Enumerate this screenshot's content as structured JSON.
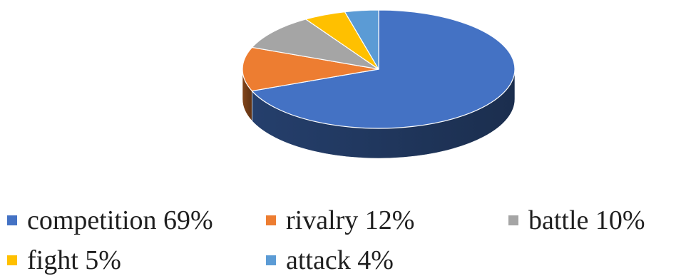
{
  "chart_data": {
    "type": "pie",
    "variant": "3d",
    "title": "",
    "categories": [
      "competition",
      "rivalry",
      "battle",
      "fight",
      "attack"
    ],
    "values": [
      69,
      12,
      10,
      5,
      4
    ],
    "unit": "%",
    "colors": [
      "#4472C4",
      "#ED7D31",
      "#A5A5A5",
      "#FFC000",
      "#5B9BD5"
    ],
    "legend": {
      "placement": "bottom",
      "entries": [
        {
          "label": "competition 69%",
          "color": "#4472C4"
        },
        {
          "label": "rivalry 12%",
          "color": "#ED7D31"
        },
        {
          "label": "battle 10%",
          "color": "#A5A5A5"
        },
        {
          "label": "fight 5%",
          "color": "#FFC000"
        },
        {
          "label": "attack 4%",
          "color": "#5B9BD5"
        }
      ]
    }
  }
}
